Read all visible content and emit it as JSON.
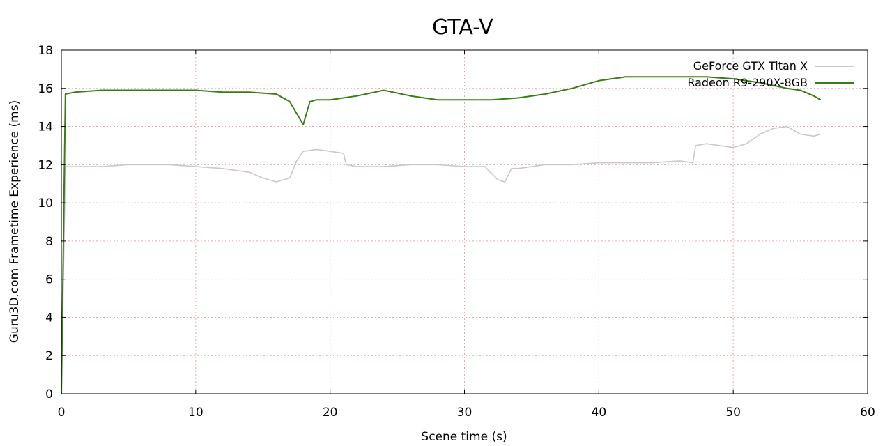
{
  "chart_data": {
    "type": "line",
    "title": "GTA-V",
    "xlabel": "Scene time (s)",
    "ylabel": "Guru3D.com Frametime Experience (ms)",
    "xlim": [
      0,
      60
    ],
    "ylim": [
      0,
      18
    ],
    "xticks": [
      0,
      10,
      20,
      30,
      40,
      50,
      60
    ],
    "yticks": [
      0,
      2,
      4,
      6,
      8,
      10,
      12,
      14,
      16,
      18
    ],
    "grid": true,
    "legend_position": "top-right",
    "series": [
      {
        "name": "GeForce GTX Titan X",
        "color": "#c8c8c8",
        "x": [
          0,
          0.3,
          1,
          3,
          5,
          8,
          10,
          12,
          14,
          15,
          16,
          17,
          17.5,
          18,
          19,
          20,
          21,
          21.2,
          22,
          24,
          26,
          28,
          30,
          31.5,
          32.5,
          33,
          33.5,
          34,
          36,
          38,
          40,
          42,
          44,
          46,
          47,
          47.2,
          48,
          50,
          51,
          52,
          53,
          54,
          55,
          56,
          56.5
        ],
        "y": [
          0,
          11.9,
          11.9,
          11.9,
          12.0,
          12.0,
          11.9,
          11.8,
          11.6,
          11.3,
          11.1,
          11.3,
          12.2,
          12.7,
          12.8,
          12.7,
          12.6,
          12.0,
          11.9,
          11.9,
          12.0,
          12.0,
          11.9,
          11.9,
          11.2,
          11.1,
          11.8,
          11.8,
          12.0,
          12.0,
          12.1,
          12.1,
          12.1,
          12.2,
          12.1,
          13.0,
          13.1,
          12.9,
          13.1,
          13.6,
          13.9,
          14.0,
          13.6,
          13.5,
          13.6
        ]
      },
      {
        "name": "Radeon R9-290X-8GB",
        "color": "#3a7d16",
        "x": [
          0,
          0.3,
          1,
          3,
          5,
          8,
          10,
          12,
          14,
          16,
          17,
          18,
          18.5,
          19,
          20,
          22,
          24,
          26,
          28,
          30,
          32,
          34,
          36,
          38,
          40,
          42,
          44,
          46,
          48,
          50,
          52,
          54,
          55,
          56,
          56.5
        ],
        "y": [
          0,
          15.7,
          15.8,
          15.9,
          15.9,
          15.9,
          15.9,
          15.8,
          15.8,
          15.7,
          15.3,
          14.1,
          15.3,
          15.4,
          15.4,
          15.6,
          15.9,
          15.6,
          15.4,
          15.4,
          15.4,
          15.5,
          15.7,
          16.0,
          16.4,
          16.6,
          16.6,
          16.6,
          16.6,
          16.5,
          16.3,
          16.0,
          15.9,
          15.6,
          15.4
        ]
      }
    ]
  }
}
